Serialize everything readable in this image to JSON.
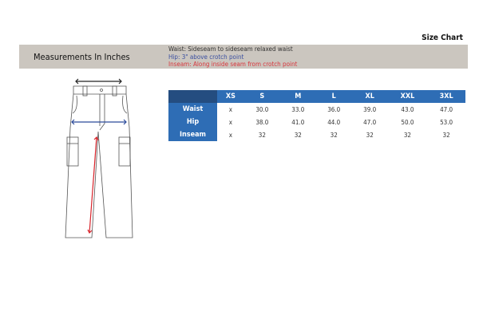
{
  "title": "Size Chart",
  "band": {
    "heading": "Measurements In Inches",
    "notes": [
      "Waist: Sideseam to sideseam relaxed waist",
      "Hip: 3\" above crotch point",
      "Inseam: Along inside seam from crotch point"
    ]
  },
  "table": {
    "headers": [
      "XS",
      "S",
      "M",
      "L",
      "XL",
      "XXL",
      "3XL"
    ],
    "rows": [
      {
        "label": "Waist",
        "values": [
          "x",
          "30.0",
          "33.0",
          "36.0",
          "39.0",
          "43.0",
          "47.0"
        ]
      },
      {
        "label": "Hip",
        "values": [
          "x",
          "38.0",
          "41.0",
          "44.0",
          "47.0",
          "50.0",
          "53.0"
        ]
      },
      {
        "label": "Inseam",
        "values": [
          "x",
          "32",
          "32",
          "32",
          "32",
          "32",
          "32"
        ]
      }
    ]
  },
  "colors": {
    "header": "#2e6db5",
    "corner": "#244d80",
    "waist_arrow": "#222222",
    "hip_arrow": "#2a4a9a",
    "inseam_arrow": "#d8232a"
  }
}
